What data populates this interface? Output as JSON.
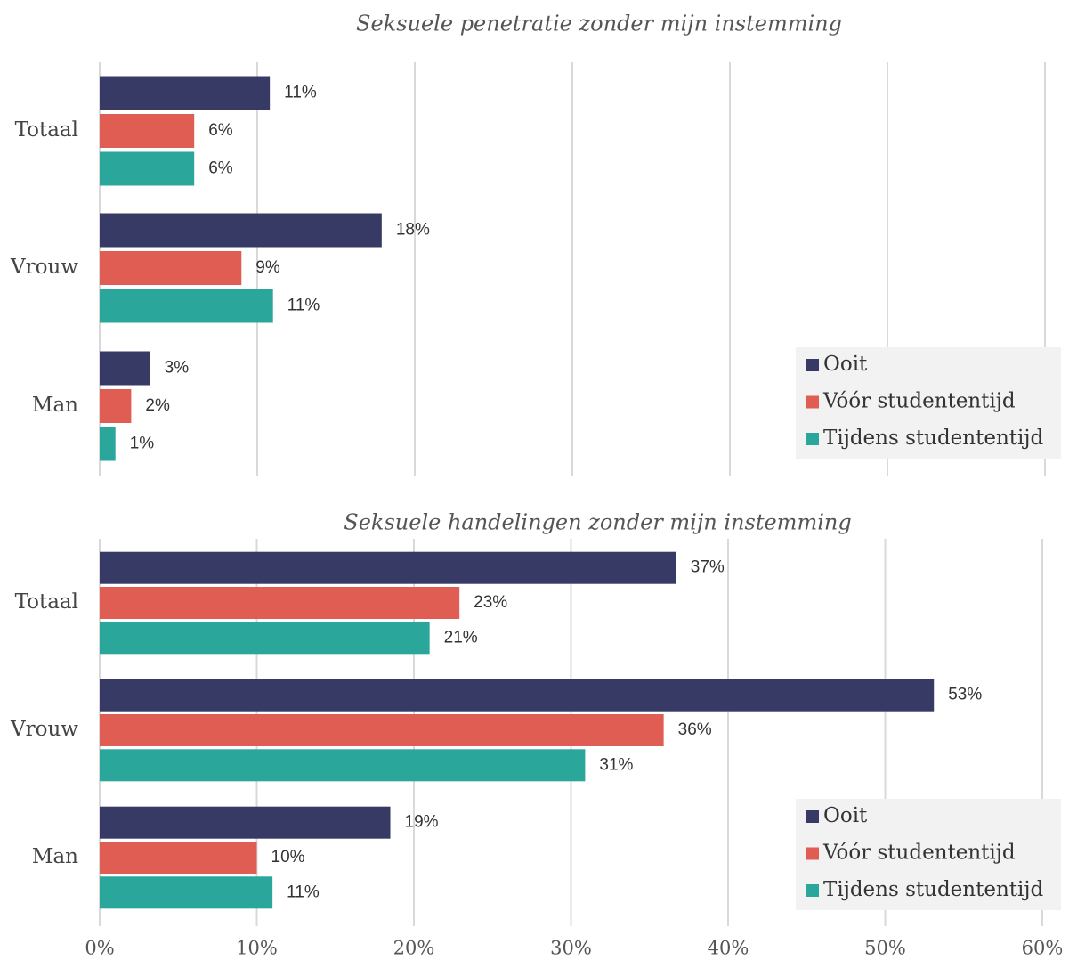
{
  "chart_data": [
    {
      "type": "bar",
      "orientation": "horizontal",
      "title": "Seksuele penetratie zonder mijn instemming",
      "categories": [
        "Totaal",
        "Vrouw",
        "Man"
      ],
      "series": [
        {
          "name": "Ooit",
          "color": "#383a66",
          "values": [
            10.8,
            17.9,
            3.2
          ],
          "value_labels": [
            "11%",
            "18%",
            "3%"
          ]
        },
        {
          "name": "Vóór studententijd",
          "color": "#df5d52",
          "values": [
            6.0,
            9.0,
            2.0
          ],
          "value_labels": [
            "6%",
            "9%",
            "2%"
          ]
        },
        {
          "name": "Tijdens studententijd",
          "color": "#2aa69b",
          "values": [
            6.0,
            11.0,
            1.0
          ],
          "value_labels": [
            "6%",
            "11%",
            "1%"
          ]
        }
      ],
      "xlim": [
        0,
        60
      ],
      "xticks": [
        0,
        10,
        20,
        30,
        40,
        50,
        60
      ],
      "grid": true,
      "legend": "lower right"
    },
    {
      "type": "bar",
      "orientation": "horizontal",
      "title": "Seksuele handelingen zonder mijn instemming",
      "categories": [
        "Totaal",
        "Vrouw",
        "Man"
      ],
      "series": [
        {
          "name": "Ooit",
          "color": "#383a66",
          "values": [
            36.7,
            53.1,
            18.5
          ],
          "value_labels": [
            "37%",
            "53%",
            "19%"
          ]
        },
        {
          "name": "Vóór studententijd",
          "color": "#df5d52",
          "values": [
            22.9,
            35.9,
            10.0
          ],
          "value_labels": [
            "23%",
            "36%",
            "10%"
          ]
        },
        {
          "name": "Tijdens studententijd",
          "color": "#2aa69b",
          "values": [
            21.0,
            30.9,
            11.0
          ],
          "value_labels": [
            "21%",
            "31%",
            "11%"
          ]
        }
      ],
      "xlim": [
        0,
        60
      ],
      "xticks": [
        {
          "value": 0,
          "label": "0%"
        },
        {
          "value": 10,
          "label": "10%"
        },
        {
          "value": 20,
          "label": "20%"
        },
        {
          "value": 30,
          "label": "30%"
        },
        {
          "value": 40,
          "label": "40%"
        },
        {
          "value": 50,
          "label": "50%"
        },
        {
          "value": 60,
          "label": "60%"
        }
      ],
      "grid": true,
      "legend": "lower right"
    }
  ]
}
